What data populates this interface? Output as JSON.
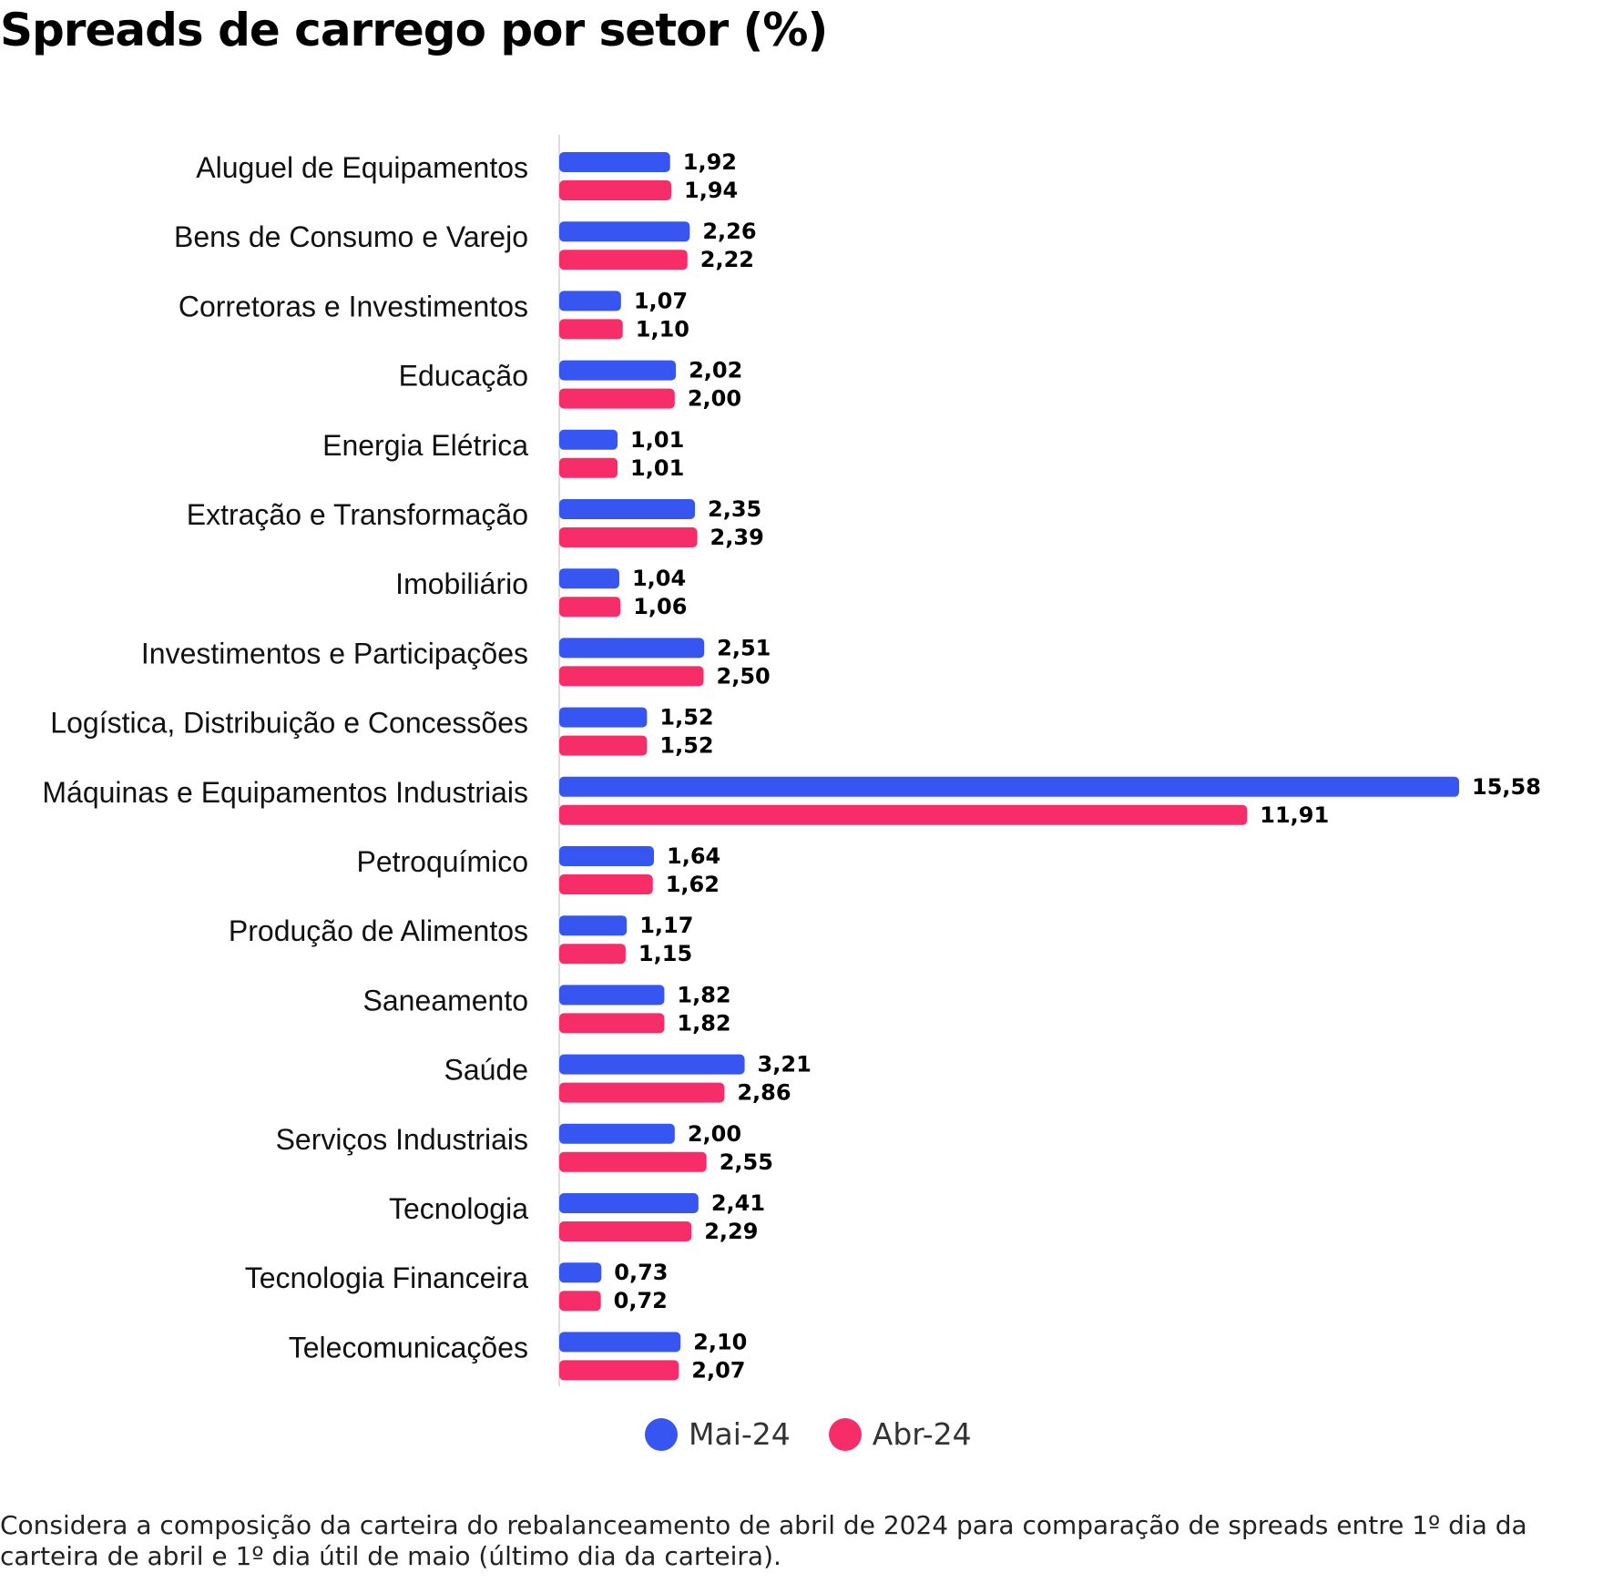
{
  "title": "Spreads de carrego por setor (%)",
  "legend": {
    "series1_label": "Mai-24",
    "series2_label": "Abr-24"
  },
  "footnote": "Considera a composição da carteira do rebalanceamento de abril de 2024 para comparação de spreads entre 1º dia da carteira de abril e 1º dia útil de maio (último dia da carteira).",
  "colors": {
    "series1": "#3755F0",
    "series2": "#F72D6A",
    "axis": "#dddddd"
  },
  "chart_data": {
    "type": "bar",
    "orientation": "horizontal",
    "title": "Spreads de carrego por setor (%)",
    "xlabel": "",
    "ylabel": "",
    "xlim": [
      0,
      15.58
    ],
    "grid": false,
    "legend_position": "bottom-center",
    "categories": [
      "Aluguel de Equipamentos",
      "Bens de Consumo e Varejo",
      "Corretoras e Investimentos",
      "Educação",
      "Energia Elétrica",
      "Extração e Transformação",
      "Imobiliário",
      "Investimentos e Participações",
      "Logística, Distribuição e Concessões",
      "Máquinas e Equipamentos Industriais",
      "Petroquímico",
      "Produção de Alimentos",
      "Saneamento",
      "Saúde",
      "Serviços Industriais",
      "Tecnologia",
      "Tecnologia Financeira",
      "Telecomunicações"
    ],
    "series": [
      {
        "name": "Mai-24",
        "values": [
          1.92,
          2.26,
          1.07,
          2.02,
          1.01,
          2.35,
          1.04,
          2.51,
          1.52,
          15.58,
          1.64,
          1.17,
          1.82,
          3.21,
          2.0,
          2.41,
          0.73,
          2.1
        ],
        "labels": [
          "1,92",
          "2,26",
          "1,07",
          "2,02",
          "1,01",
          "2,35",
          "1,04",
          "2,51",
          "1,52",
          "15,58",
          "1,64",
          "1,17",
          "1,82",
          "3,21",
          "2,00",
          "2,41",
          "0,73",
          "2,10"
        ]
      },
      {
        "name": "Abr-24",
        "values": [
          1.94,
          2.22,
          1.1,
          2.0,
          1.01,
          2.39,
          1.06,
          2.5,
          1.52,
          11.91,
          1.62,
          1.15,
          1.82,
          2.86,
          2.55,
          2.29,
          0.72,
          2.07
        ],
        "labels": [
          "1,94",
          "2,22",
          "1,10",
          "2,00",
          "1,01",
          "2,39",
          "1,06",
          "2,50",
          "1,52",
          "11,91",
          "1,62",
          "1,15",
          "1,82",
          "2,86",
          "2,55",
          "2,29",
          "0,72",
          "2,07"
        ]
      }
    ]
  }
}
